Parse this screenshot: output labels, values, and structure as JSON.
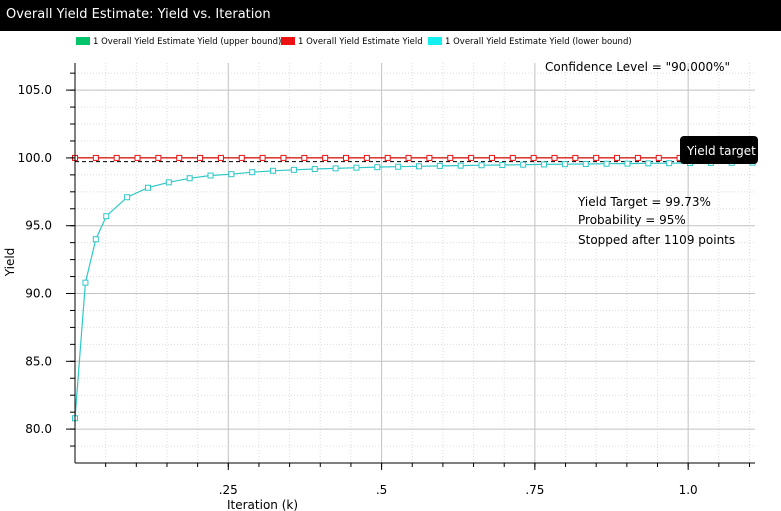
{
  "window": {
    "title": "Overall Yield Estimate: Yield vs. Iteration"
  },
  "legend": {
    "items": [
      {
        "label": "1 Overall Yield Estimate Yield (upper bound)",
        "color": "#00c36a"
      },
      {
        "label": "1 Overall Yield Estimate Yield",
        "color": "#ee1111"
      },
      {
        "label": "1 Overall Yield Estimate Yield (lower bound)",
        "color": "#14f0f0"
      }
    ]
  },
  "annotations": {
    "confidence": "Confidence Level = \"90.000%\"",
    "yield_target_line1": "Yield Target = 99.73%",
    "yield_target_line2": "Probability = 95%",
    "yield_target_line3": "Stopped after 1109 points",
    "target_tag": "Yield target"
  },
  "chart_data": {
    "type": "line",
    "xlabel": "Iteration (k)",
    "ylabel": "Yield",
    "xlim": [
      0,
      1.109
    ],
    "ylim": [
      77.5,
      107.0
    ],
    "x_ticks": [
      {
        "value": 0.25,
        "label": ".25"
      },
      {
        "value": 0.5,
        "label": ".5"
      },
      {
        "value": 0.75,
        "label": ".75"
      },
      {
        "value": 1.0,
        "label": "1.0"
      }
    ],
    "y_ticks": [
      {
        "value": 80,
        "label": "80.0"
      },
      {
        "value": 85,
        "label": "85.0"
      },
      {
        "value": 90,
        "label": "90.0"
      },
      {
        "value": 95,
        "label": "95.0"
      },
      {
        "value": 100,
        "label": "100.0"
      },
      {
        "value": 105,
        "label": "105.0"
      }
    ],
    "grid": true,
    "yield_target": 99.73,
    "series": [
      {
        "key": "upper",
        "color": "#00c36a",
        "points": [
          [
            0.0,
            100
          ],
          [
            0.034,
            100
          ],
          [
            0.068,
            100
          ],
          [
            0.102,
            100
          ],
          [
            0.136,
            100
          ],
          [
            0.17,
            100
          ],
          [
            0.204,
            100
          ],
          [
            0.238,
            100
          ],
          [
            0.272,
            100
          ],
          [
            0.306,
            100
          ],
          [
            0.34,
            100
          ],
          [
            0.374,
            100
          ],
          [
            0.408,
            100
          ],
          [
            0.442,
            100
          ],
          [
            0.476,
            100
          ],
          [
            0.51,
            100
          ],
          [
            0.544,
            100
          ],
          [
            0.578,
            100
          ],
          [
            0.612,
            100
          ],
          [
            0.646,
            100
          ],
          [
            0.68,
            100
          ],
          [
            0.714,
            100
          ],
          [
            0.748,
            100
          ],
          [
            0.782,
            100
          ],
          [
            0.816,
            100
          ],
          [
            0.85,
            100
          ],
          [
            0.884,
            100
          ],
          [
            0.918,
            100
          ],
          [
            0.952,
            100
          ],
          [
            0.986,
            100
          ],
          [
            1.02,
            100
          ],
          [
            1.054,
            100
          ],
          [
            1.088,
            100
          ]
        ]
      },
      {
        "key": "estimate",
        "color": "#ee1111",
        "points": [
          [
            0.0,
            100
          ],
          [
            0.034,
            100
          ],
          [
            0.068,
            100
          ],
          [
            0.102,
            100
          ],
          [
            0.136,
            100
          ],
          [
            0.17,
            100
          ],
          [
            0.204,
            100
          ],
          [
            0.238,
            100
          ],
          [
            0.272,
            100
          ],
          [
            0.306,
            100
          ],
          [
            0.34,
            100
          ],
          [
            0.374,
            100
          ],
          [
            0.408,
            100
          ],
          [
            0.442,
            100
          ],
          [
            0.476,
            100
          ],
          [
            0.51,
            100
          ],
          [
            0.544,
            100
          ],
          [
            0.578,
            100
          ],
          [
            0.612,
            100
          ],
          [
            0.646,
            100
          ],
          [
            0.68,
            100
          ],
          [
            0.714,
            100
          ],
          [
            0.748,
            100
          ],
          [
            0.782,
            100
          ],
          [
            0.816,
            100
          ],
          [
            0.85,
            100
          ],
          [
            0.884,
            100
          ],
          [
            0.918,
            100
          ],
          [
            0.952,
            100
          ],
          [
            0.986,
            100
          ],
          [
            1.02,
            100
          ],
          [
            1.054,
            100
          ],
          [
            1.088,
            100
          ]
        ]
      },
      {
        "key": "lower",
        "color": "#2ec8c8",
        "points": [
          [
            0.0,
            80.8
          ],
          [
            0.017,
            90.8
          ],
          [
            0.034,
            94.0
          ],
          [
            0.051,
            95.7
          ],
          [
            0.085,
            97.1
          ],
          [
            0.119,
            97.8
          ],
          [
            0.153,
            98.2
          ],
          [
            0.187,
            98.5
          ],
          [
            0.221,
            98.7
          ],
          [
            0.255,
            98.8
          ],
          [
            0.289,
            98.95
          ],
          [
            0.323,
            99.05
          ],
          [
            0.357,
            99.12
          ],
          [
            0.391,
            99.18
          ],
          [
            0.425,
            99.23
          ],
          [
            0.459,
            99.28
          ],
          [
            0.493,
            99.32
          ],
          [
            0.527,
            99.35
          ],
          [
            0.561,
            99.38
          ],
          [
            0.595,
            99.41
          ],
          [
            0.629,
            99.43
          ],
          [
            0.663,
            99.46
          ],
          [
            0.697,
            99.48
          ],
          [
            0.731,
            99.5
          ],
          [
            0.765,
            99.52
          ],
          [
            0.799,
            99.54
          ],
          [
            0.833,
            99.55
          ],
          [
            0.867,
            99.57
          ],
          [
            0.901,
            99.58
          ],
          [
            0.935,
            99.6
          ],
          [
            0.969,
            99.61
          ],
          [
            1.003,
            99.62
          ],
          [
            1.037,
            99.63
          ],
          [
            1.071,
            99.64
          ],
          [
            1.105,
            99.65
          ]
        ]
      }
    ]
  }
}
